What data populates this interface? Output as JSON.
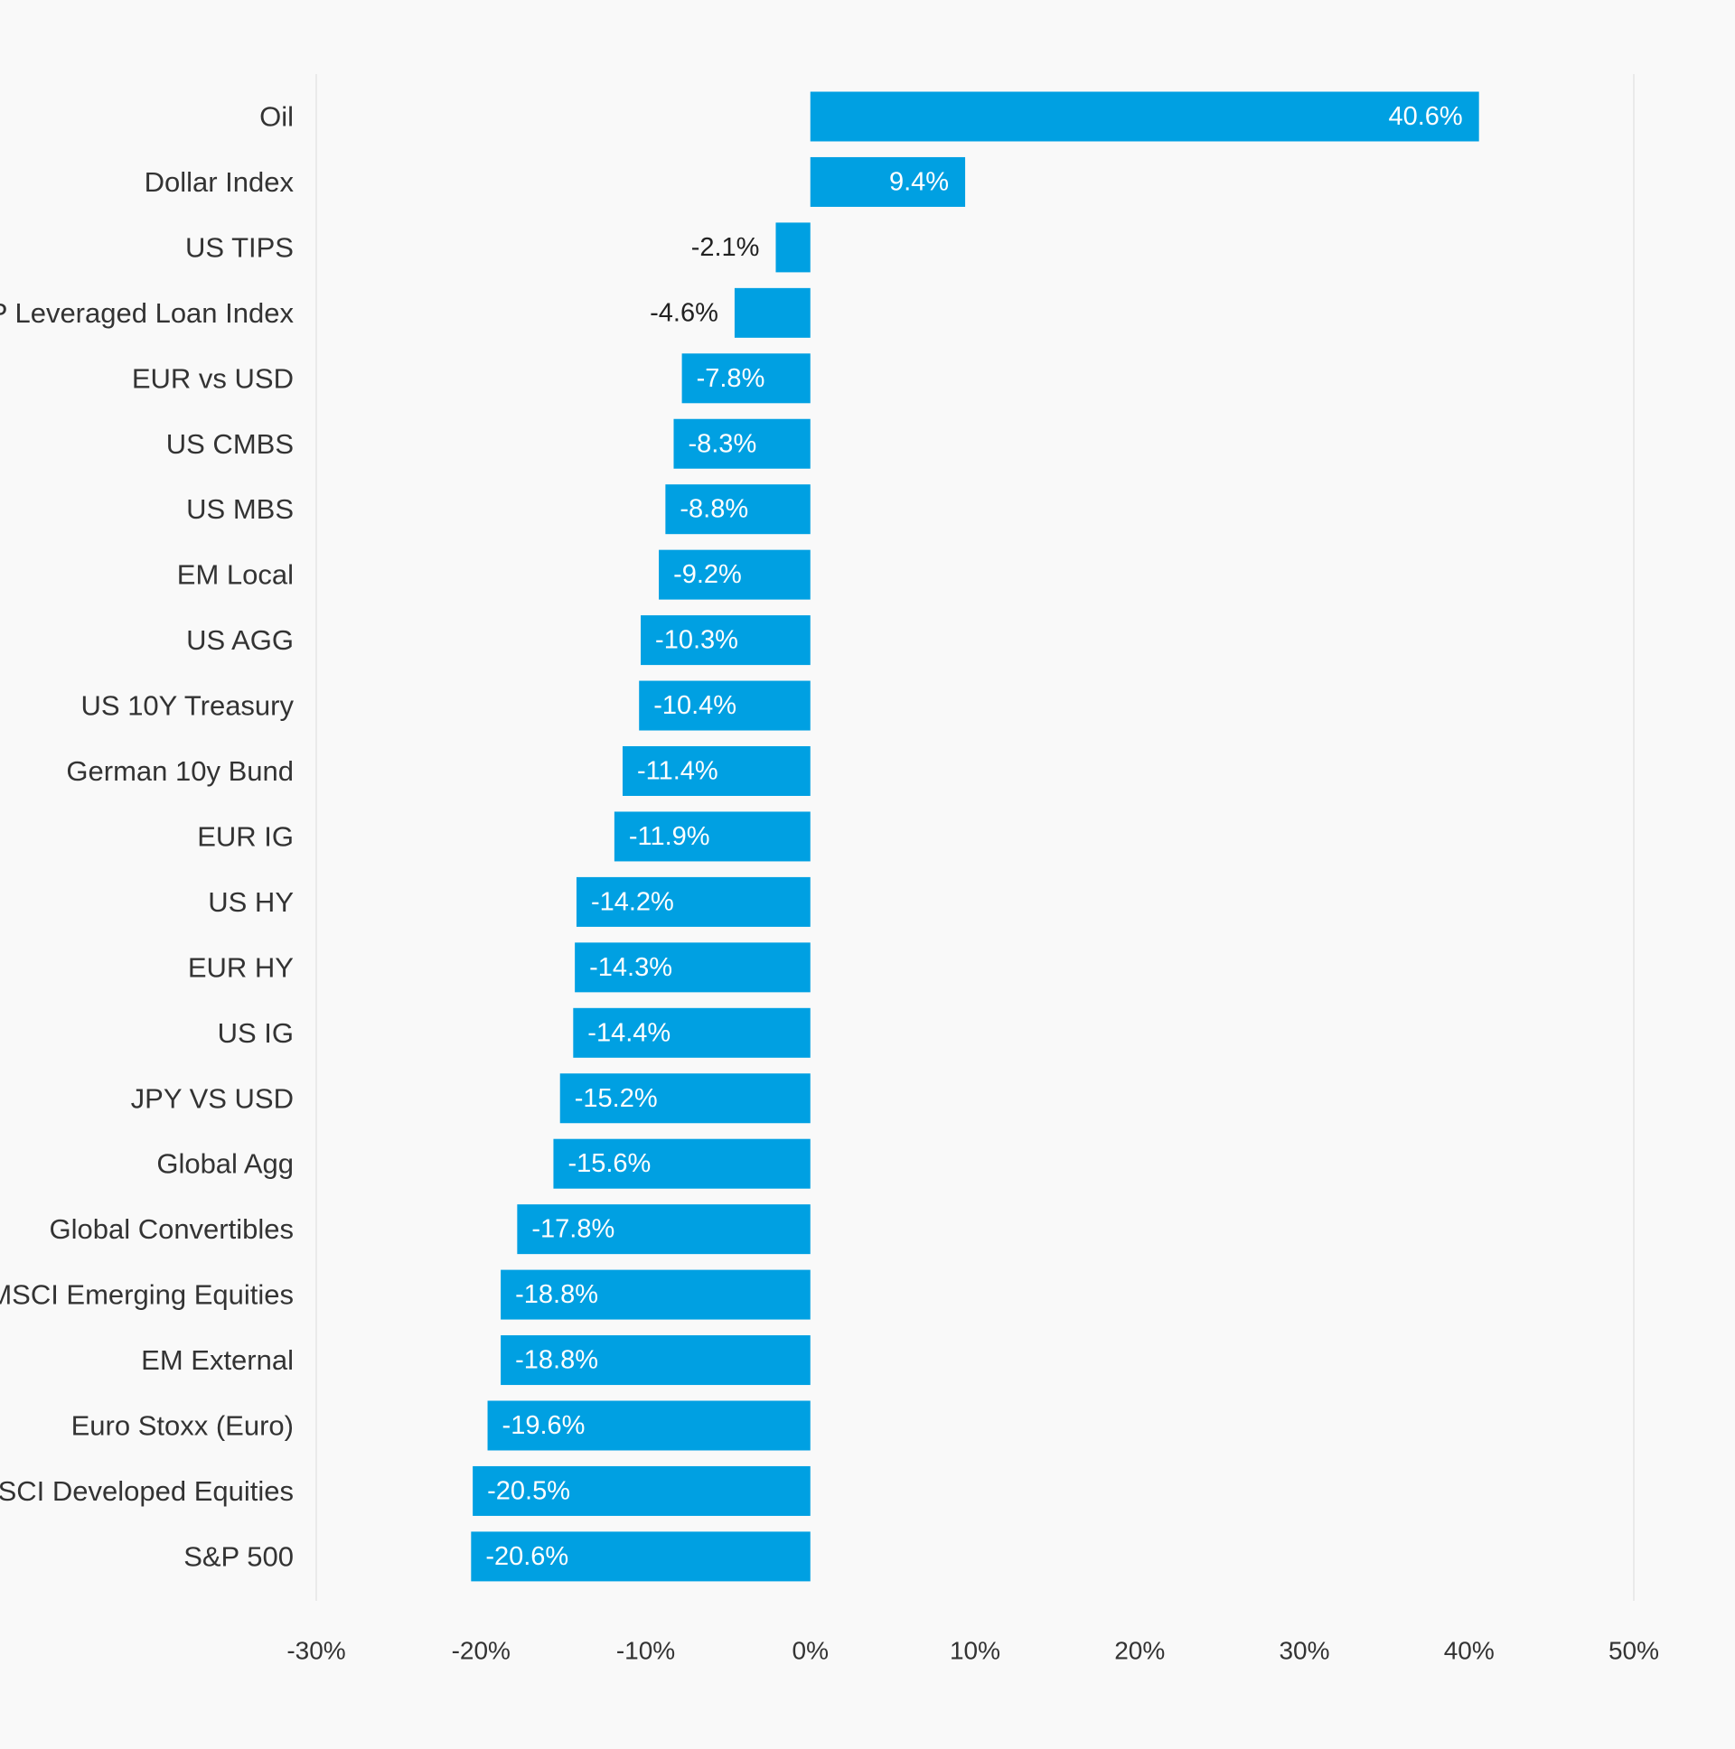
{
  "chart_data": {
    "type": "bar",
    "orientation": "horizontal",
    "categories": [
      "Oil",
      "Dollar Index",
      "US TIPS",
      "S&P Leveraged Loan Index",
      "EUR vs USD",
      "US CMBS",
      "US MBS",
      "EM Local",
      "US AGG",
      "US 10Y Treasury",
      "German 10y Bund",
      "EUR IG",
      "US HY",
      "EUR HY",
      "US IG",
      "JPY VS USD",
      "Global Agg",
      "Global Convertibles",
      "MSCI Emerging Equities",
      "EM External",
      "Euro Stoxx (Euro)",
      "MSCI Developed Equities",
      "S&P 500"
    ],
    "values": [
      40.6,
      9.4,
      -2.1,
      -4.6,
      -7.8,
      -8.3,
      -8.8,
      -9.2,
      -10.3,
      -10.4,
      -11.4,
      -11.9,
      -14.2,
      -14.3,
      -14.4,
      -15.2,
      -15.6,
      -17.8,
      -18.8,
      -18.8,
      -19.6,
      -20.5,
      -20.6
    ],
    "value_labels": [
      "40.6%",
      "9.4%",
      "-2.1%",
      "-4.6%",
      "-7.8%",
      "-8.3%",
      "-8.8%",
      "-9.2%",
      "-10.3%",
      "-10.4%",
      "-11.4%",
      "-11.9%",
      "-14.2%",
      "-14.3%",
      "-14.4%",
      "-15.2%",
      "-15.6%",
      "-17.8%",
      "-18.8%",
      "-18.8%",
      "-19.6%",
      "-20.5%",
      "-20.6%"
    ],
    "xlim": [
      -30,
      50
    ],
    "x_ticks": [
      -30,
      -20,
      -10,
      0,
      10,
      20,
      30,
      40,
      50
    ],
    "x_tick_labels": [
      "-30%",
      "-20%",
      "-10%",
      "0%",
      "10%",
      "20%",
      "30%",
      "40%",
      "50%"
    ],
    "title": "",
    "xlabel": "",
    "ylabel": "",
    "grid": "edges-only",
    "legend": "none",
    "bar_color": "#00a0e2",
    "axis_line_color": "#e6e6e6",
    "text_color": "#333333"
  }
}
